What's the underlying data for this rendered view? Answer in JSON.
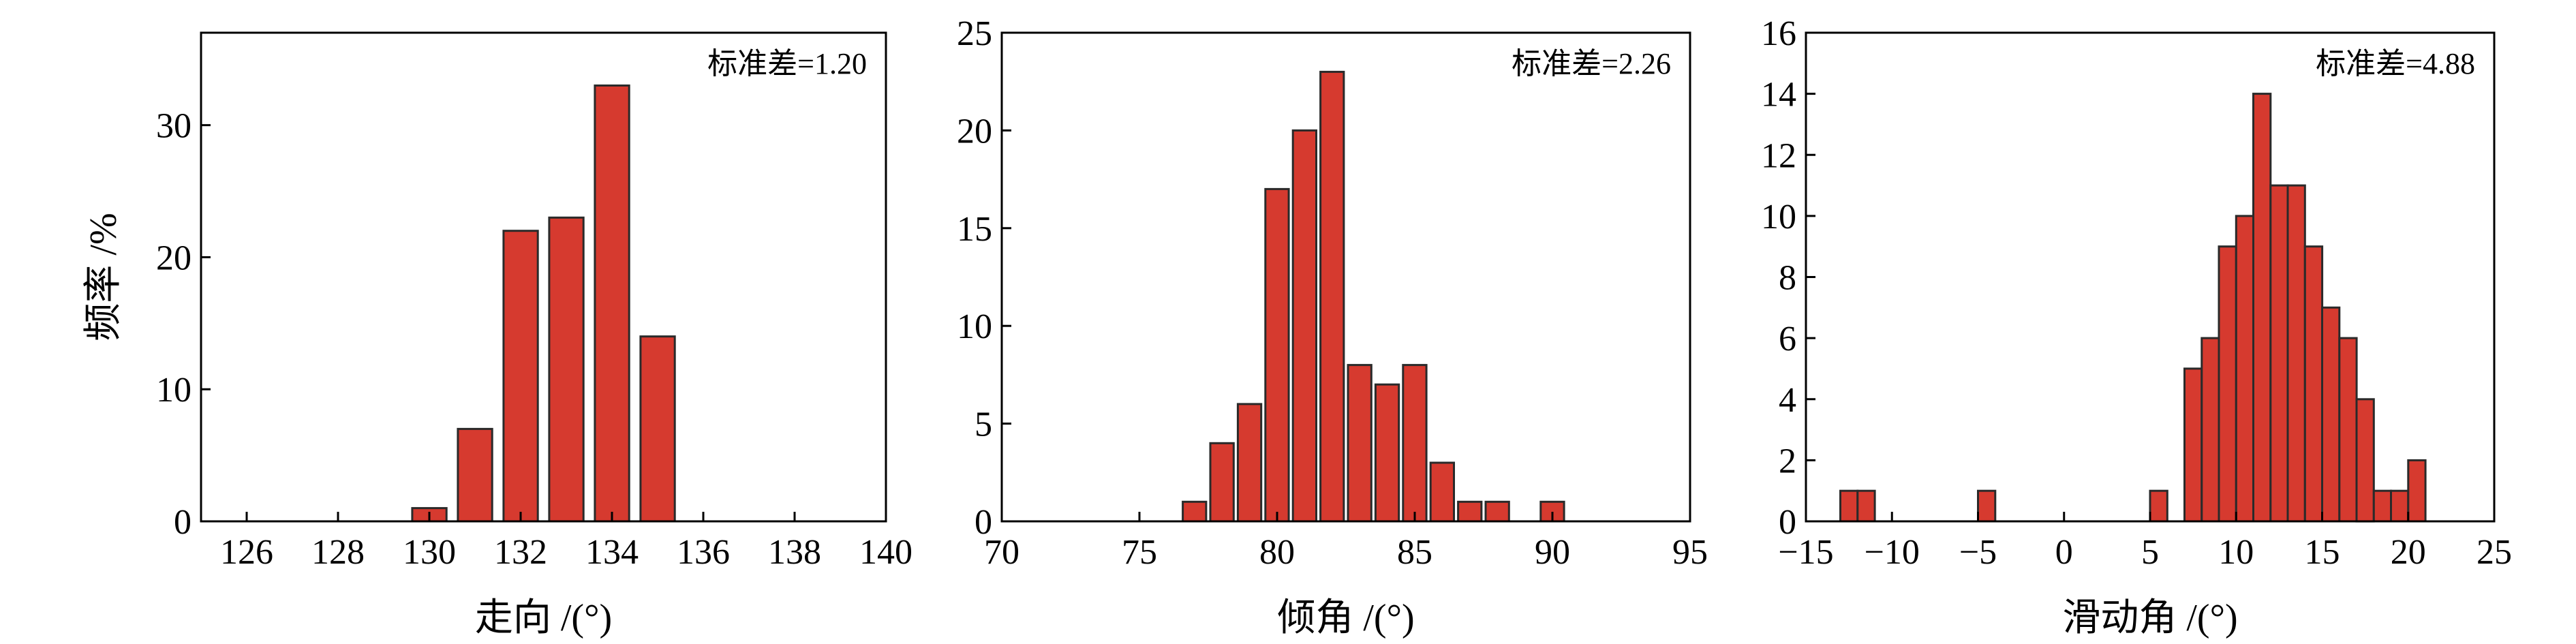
{
  "figure": {
    "shared_ylabel": "频率 /%",
    "bar_color": "#d63a2f",
    "edge_color": "#2a2a2a"
  },
  "chart_data": [
    {
      "type": "bar",
      "xlabel": "走向 /(°)",
      "ylabel": "频率 /%",
      "annotation": "标准差=1.20",
      "xlim": [
        125,
        140
      ],
      "ylim": [
        0,
        37
      ],
      "xticks": [
        126,
        128,
        130,
        132,
        134,
        136,
        138,
        140
      ],
      "yticks": [
        0,
        10,
        20,
        30
      ],
      "bar_width": 0.75,
      "x": [
        130,
        131,
        132,
        133,
        134,
        135
      ],
      "values": [
        1,
        7,
        22,
        23,
        33,
        14
      ]
    },
    {
      "type": "bar",
      "xlabel": "倾角 /(°)",
      "ylabel": "",
      "annotation": "标准差=2.26",
      "xlim": [
        70,
        95
      ],
      "ylim": [
        0,
        25
      ],
      "xticks": [
        70,
        75,
        80,
        85,
        90,
        95
      ],
      "yticks": [
        0,
        5,
        10,
        15,
        20,
        25
      ],
      "bar_width": 0.85,
      "x": [
        77,
        78,
        79,
        80,
        81,
        82,
        83,
        84,
        85,
        86,
        87,
        88,
        90
      ],
      "values": [
        1,
        4,
        6,
        17,
        20,
        23,
        8,
        7,
        8,
        3,
        1,
        1,
        1
      ]
    },
    {
      "type": "bar",
      "xlabel": "滑动角 /(°)",
      "ylabel": "",
      "annotation": "标准差=4.88",
      "xlim": [
        -15,
        25
      ],
      "ylim": [
        0,
        16
      ],
      "xticks": [
        -15,
        -10,
        -5,
        0,
        5,
        10,
        15,
        20,
        25
      ],
      "yticks": [
        0,
        2,
        4,
        6,
        8,
        10,
        12,
        14,
        16
      ],
      "bar_width": 1.0,
      "x": [
        -12.5,
        -11.5,
        -4.5,
        5.5,
        7.5,
        8.5,
        9.5,
        10.5,
        11.5,
        12.5,
        13.5,
        14.5,
        15.5,
        16.5,
        17.5,
        18.5,
        19.5,
        20.5
      ],
      "values": [
        1,
        1,
        1,
        1,
        5,
        6,
        9,
        10,
        14,
        11,
        11,
        9,
        7,
        6,
        4,
        1,
        1,
        2
      ]
    }
  ]
}
